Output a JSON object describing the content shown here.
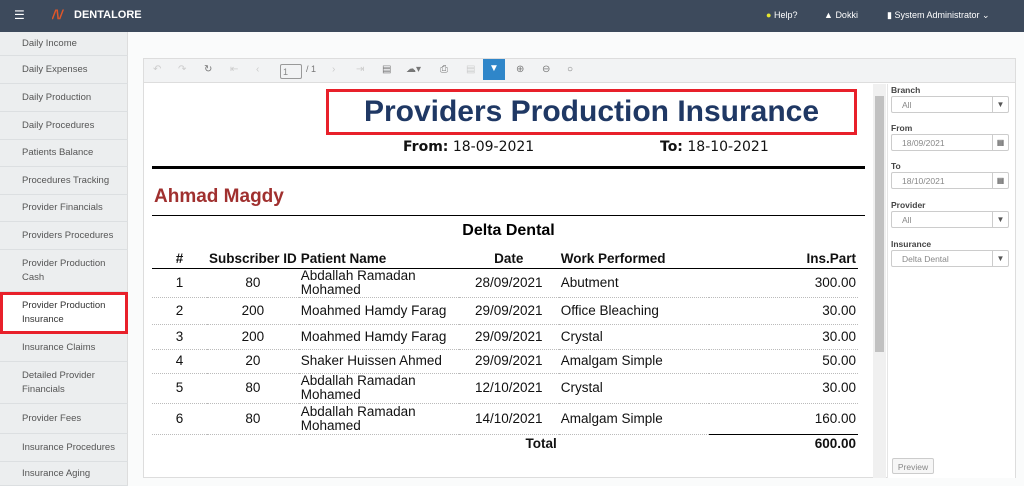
{
  "header": {
    "brand": "DENTALORE",
    "help": "Help?",
    "branch": "Dokki",
    "user": "System Administrator",
    "colors": {
      "bar": "#3d4a5c",
      "logo": "#e0572a"
    }
  },
  "sidebar": {
    "items": [
      {
        "label": "Daily Income"
      },
      {
        "label": "Daily Expenses"
      },
      {
        "label": "Daily Production"
      },
      {
        "label": "Daily Procedures"
      },
      {
        "label": "Patients Balance"
      },
      {
        "label": "Procedures Tracking"
      },
      {
        "label": "Provider Financials"
      },
      {
        "label": "Providers Procedures"
      },
      {
        "label": "Provider Production Cash"
      },
      {
        "label": "Provider Production Insurance",
        "active": true
      },
      {
        "label": "Insurance Claims"
      },
      {
        "label": "Detailed Provider Financials"
      },
      {
        "label": "Provider Fees"
      },
      {
        "label": "Insurance Procedures"
      },
      {
        "label": "Insurance Aging"
      }
    ]
  },
  "toolbar": {
    "page": "1",
    "page_total": "/ 1"
  },
  "report": {
    "title": "Providers Production Insurance",
    "from_label": "From:",
    "from": "18-09-2021",
    "to_label": "To:",
    "to": "18-10-2021",
    "provider": "Ahmad Magdy",
    "insurance": "Delta Dental",
    "columns": [
      "#",
      "Subscriber ID",
      "Patient Name",
      "Date",
      "Work Performed",
      "Ins.Part"
    ],
    "rows": [
      [
        "1",
        "80",
        "Abdallah Ramadan Mohamed",
        "28/09/2021",
        "Abutment",
        "300.00"
      ],
      [
        "2",
        "200",
        "Moahmed Hamdy Farag",
        "29/09/2021",
        "Office Bleaching",
        "30.00"
      ],
      [
        "3",
        "200",
        "Moahmed Hamdy Farag",
        "29/09/2021",
        "Crystal",
        "30.00"
      ],
      [
        "4",
        "20",
        "Shaker Huissen Ahmed",
        "29/09/2021",
        "Amalgam Simple",
        "50.00"
      ],
      [
        "5",
        "80",
        "Abdallah Ramadan Mohamed",
        "12/10/2021",
        "Crystal",
        "30.00"
      ],
      [
        "6",
        "80",
        "Abdallah Ramadan Mohamed",
        "14/10/2021",
        "Amalgam Simple",
        "160.00"
      ]
    ],
    "total_label": "Total",
    "total": "600.00"
  },
  "params": {
    "branch_label": "Branch",
    "branch": "All",
    "from_label": "From",
    "from": "18/09/2021",
    "to_label": "To",
    "to": "18/10/2021",
    "provider_label": "Provider",
    "provider": "All",
    "insurance_label": "Insurance",
    "insurance": "Delta Dental",
    "preview": "Preview"
  }
}
